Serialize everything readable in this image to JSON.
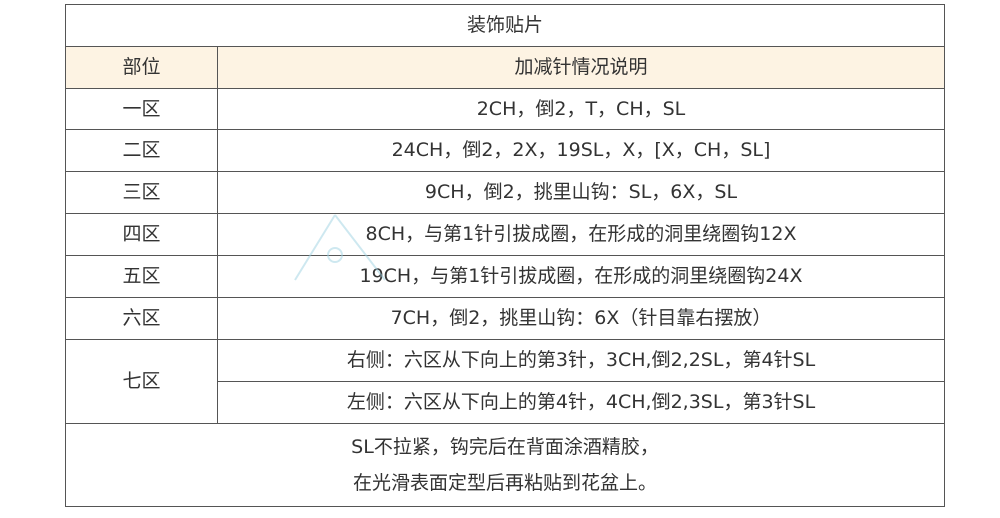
{
  "title": "装饰贴片",
  "headers": [
    "部位",
    "加减针情况说明"
  ],
  "rows": [
    {
      "part": "一区",
      "desc": "2CH，倒2，T，CH，SL"
    },
    {
      "part": "二区",
      "desc": "24CH，倒2，2X，19SL，X，[X，CH，SL]"
    },
    {
      "part": "三区",
      "desc": "9CH，倒2，挑里山钩：SL，6X，SL"
    },
    {
      "part": "四区",
      "desc": "8CH，与第1针引拔成圈，在形成的洞里绕圈钩12X"
    },
    {
      "part": "五区",
      "desc": "19CH，与第1针引拔成圈，在形成的洞里绕圈钩24X"
    },
    {
      "part": "六区",
      "desc": "7CH，倒2，挑里山钩：6X（针目靠右摆放）"
    }
  ],
  "row7": {
    "part": "七区",
    "right": "右侧：六区从下向上的第3针，3CH,倒2,2SL，第4针SL",
    "left": "左侧：六区从下向上的第4针，4CH,倒2,3SL，第3针SL"
  },
  "note": [
    "SL不拉紧，钩完后在背面涂酒精胶，",
    "在光滑表面定型后再粘贴到花盆上。"
  ],
  "colors": {
    "header_bg": "#fdf3e3",
    "border": "#555555"
  }
}
